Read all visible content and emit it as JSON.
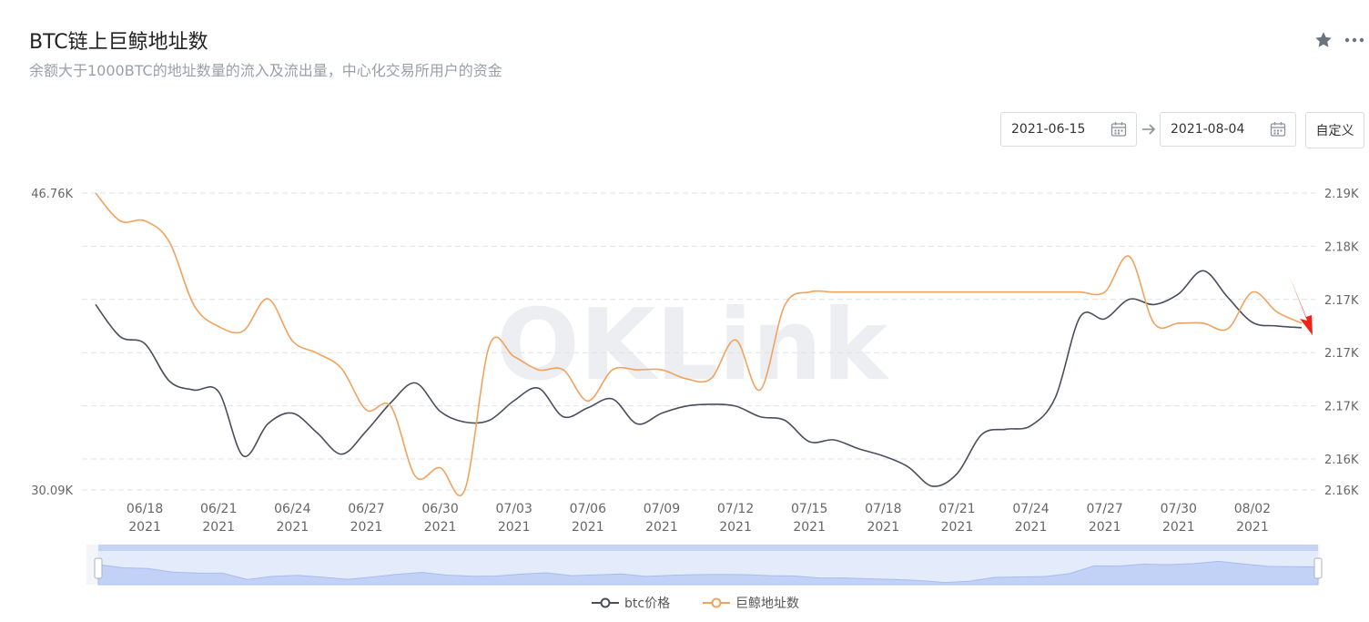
{
  "header": {
    "title": "BTC链上巨鲸地址数",
    "subtitle": "余额大于1000BTC的地址数量的流入及流出量，中心化交易所用户的资金"
  },
  "toolbar": {
    "star_icon": "star-icon",
    "more_icon": "more-dots-icon",
    "start_date": "2021-06-15",
    "end_date": "2021-08-04",
    "custom_label": "自定义"
  },
  "watermark": "OKLink",
  "colors": {
    "btc_price": "#4a4e5c",
    "whale": "#f0a35e",
    "grid": "#dfe2e6",
    "zoom_fill": "#dbe4fb",
    "annotation_arrow": "#f2211b"
  },
  "chart_data": {
    "type": "line",
    "title": "BTC链上巨鲸地址数",
    "left_axis": {
      "ticks": [
        "46.76K",
        "30.09K"
      ],
      "ylim": [
        30090,
        46760
      ]
    },
    "right_axis": {
      "ticks": [
        "2.19K",
        "2.18K",
        "2.17K",
        "2.17K",
        "2.17K",
        "2.16K",
        "2.16K"
      ]
    },
    "x_tick_labels": [
      [
        "06/18",
        "2021"
      ],
      [
        "06/21",
        "2021"
      ],
      [
        "06/24",
        "2021"
      ],
      [
        "06/27",
        "2021"
      ],
      [
        "06/30",
        "2021"
      ],
      [
        "07/03",
        "2021"
      ],
      [
        "07/06",
        "2021"
      ],
      [
        "07/09",
        "2021"
      ],
      [
        "07/12",
        "2021"
      ],
      [
        "07/15",
        "2021"
      ],
      [
        "07/18",
        "2021"
      ],
      [
        "07/21",
        "2021"
      ],
      [
        "07/24",
        "2021"
      ],
      [
        "07/27",
        "2021"
      ],
      [
        "07/30",
        "2021"
      ],
      [
        "08/02",
        "2021"
      ]
    ],
    "x": [
      "06/16",
      "06/17",
      "06/18",
      "06/19",
      "06/20",
      "06/21",
      "06/22",
      "06/23",
      "06/24",
      "06/25",
      "06/26",
      "06/27",
      "06/28",
      "06/29",
      "06/30",
      "07/01",
      "07/02",
      "07/03",
      "07/04",
      "07/05",
      "07/06",
      "07/07",
      "07/08",
      "07/09",
      "07/10",
      "07/11",
      "07/12",
      "07/13",
      "07/14",
      "07/15",
      "07/16",
      "07/17",
      "07/18",
      "07/19",
      "07/20",
      "07/21",
      "07/22",
      "07/23",
      "07/24",
      "07/25",
      "07/26",
      "07/27",
      "07/28",
      "07/29",
      "07/30",
      "07/31",
      "08/01",
      "08/02",
      "08/03",
      "08/04"
    ],
    "grid": true,
    "legend_position": "bottom",
    "series": [
      {
        "name": "btc价格",
        "axis": "left",
        "values": [
          40500,
          38700,
          38300,
          36200,
          35700,
          35600,
          32000,
          33800,
          34400,
          33300,
          32100,
          33400,
          35000,
          36100,
          34500,
          33900,
          34000,
          35100,
          35800,
          34200,
          34700,
          35200,
          33800,
          34400,
          34800,
          34900,
          34800,
          34200,
          34000,
          32800,
          32900,
          32400,
          32000,
          31400,
          30300,
          31000,
          33200,
          33500,
          33700,
          35300,
          39800,
          39700,
          40800,
          40500,
          41100,
          42400,
          40900,
          39500,
          39300,
          39200
        ]
      },
      {
        "name": "巨鲸地址数",
        "axis": "right",
        "values": [
          2.1897,
          2.1872,
          2.1872,
          2.1853,
          2.1796,
          2.1777,
          2.1773,
          2.1802,
          2.1764,
          2.1753,
          2.1739,
          2.1702,
          2.1705,
          2.1642,
          2.165,
          2.163,
          2.176,
          2.175,
          2.1738,
          2.1738,
          2.171,
          2.1738,
          2.1738,
          2.1738,
          2.173,
          2.173,
          2.1765,
          2.172,
          2.1796,
          2.1808,
          2.1808,
          2.1808,
          2.1808,
          2.1808,
          2.1808,
          2.1808,
          2.1808,
          2.1808,
          2.1808,
          2.1808,
          2.1808,
          2.1808,
          2.184,
          2.178,
          2.178,
          2.178,
          2.1775,
          2.1808,
          2.179,
          2.178
        ]
      }
    ]
  }
}
